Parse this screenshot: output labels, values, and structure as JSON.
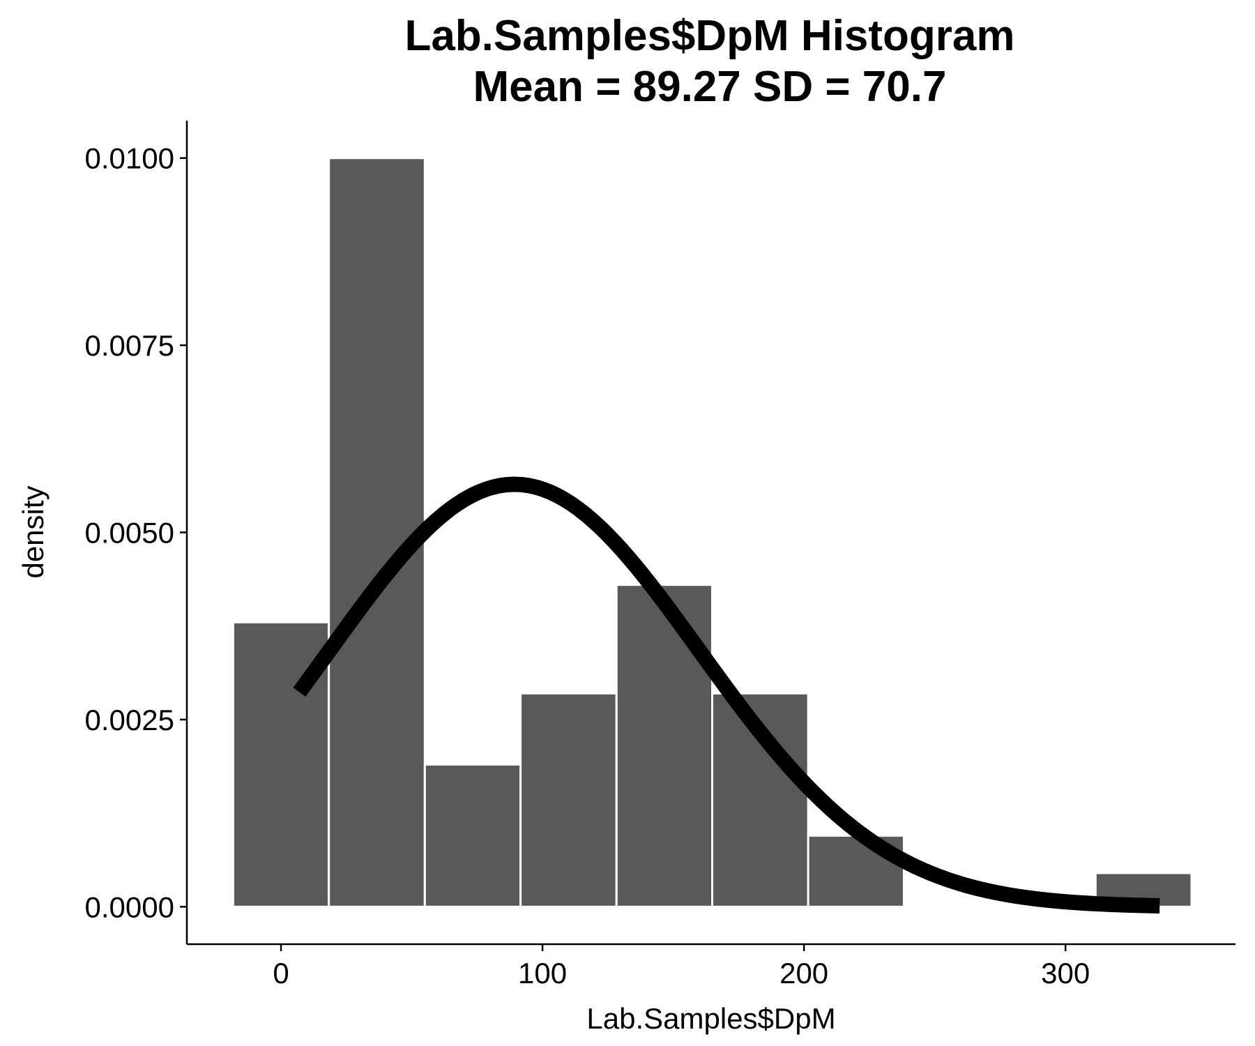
{
  "chart_data": {
    "type": "bar",
    "title": "Lab.Samples$DpM Histogram",
    "subtitle": "Mean = 89.27 SD = 70.7",
    "xlabel": "Lab.Samples$DpM",
    "ylabel": "density",
    "xlim": [
      -36,
      365
    ],
    "ylim": [
      -0.0005,
      0.0105
    ],
    "x_ticks": [
      0,
      100,
      200,
      300
    ],
    "x_tick_labels": [
      "0",
      "100",
      "200",
      "300"
    ],
    "y_ticks": [
      0,
      0.0025,
      0.005,
      0.0075,
      0.01
    ],
    "y_tick_labels": [
      "0.0000",
      "0.0025",
      "0.0050",
      "0.0075",
      "0.0100"
    ],
    "grid": false,
    "bins": [
      {
        "x_start": -18.3,
        "x_end": 18.3,
        "density": 0.0038
      },
      {
        "x_start": 18.3,
        "x_end": 55.0,
        "density": 0.01
      },
      {
        "x_start": 55.0,
        "x_end": 91.6,
        "density": 0.0019
      },
      {
        "x_start": 91.6,
        "x_end": 128.3,
        "density": 0.00285
      },
      {
        "x_start": 128.3,
        "x_end": 164.9,
        "density": 0.0043
      },
      {
        "x_start": 164.9,
        "x_end": 201.6,
        "density": 0.00285
      },
      {
        "x_start": 201.6,
        "x_end": 238.2,
        "density": 0.00095
      },
      {
        "x_start": 238.2,
        "x_end": 274.9,
        "density": 0
      },
      {
        "x_start": 274.9,
        "x_end": 311.5,
        "density": 0
      },
      {
        "x_start": 311.5,
        "x_end": 348.2,
        "density": 0.00045
      }
    ],
    "bar_color": "#595959",
    "normal_curve": {
      "mean": 89.27,
      "sd": 70.7,
      "x_from": 7,
      "x_to": 336,
      "color": "#000000"
    }
  }
}
